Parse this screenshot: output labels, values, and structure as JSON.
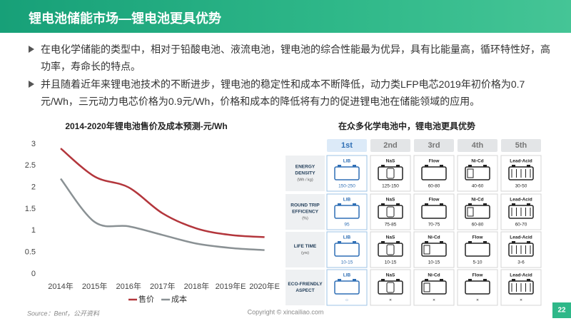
{
  "header": {
    "title": "锂电池储能市场—锂电池更具优势"
  },
  "bullets": [
    "在电化学储能的类型中，相对于铅酸电池、液流电池，锂电池的综合性能最为优异，具有比能量高，循环特性好，高功率，寿命长的特点。",
    "并且随着近年来锂电池技术的不断进步，锂电池的稳定性和成本不断降低，动力类LFP电芯2019年初价格为0.7元/Wh，三元动力电芯价格为0.9元/Wh，价格和成本的降低将有力的促进锂电池在储能领域的应用。"
  ],
  "chart_data": {
    "type": "line",
    "title": "2014-2020年锂电池售价及成本预测-元/Wh",
    "categories": [
      "2014年",
      "2015年",
      "2016年",
      "2017年",
      "2018年",
      "2019年E",
      "2020年E"
    ],
    "series": [
      {
        "name": "售价",
        "color": "#b3363c",
        "values": [
          2.9,
          2.25,
          2.0,
          1.4,
          1.05,
          0.9,
          0.85
        ]
      },
      {
        "name": "成本",
        "color": "#8a9194",
        "values": [
          2.2,
          1.2,
          1.1,
          0.9,
          0.7,
          0.6,
          0.55
        ]
      }
    ],
    "ylim": [
      0,
      3
    ],
    "yticks": [
      0,
      0.5,
      1,
      1.5,
      2,
      2.5,
      3
    ],
    "grid": false,
    "legend": "bottom"
  },
  "table": {
    "title": "在众多化学电池中，锂电池更具优势",
    "columns": [
      "1st",
      "2nd",
      "3rd",
      "4th",
      "5th"
    ],
    "rows": [
      {
        "label": [
          "ENERGY",
          "DENSITY"
        ],
        "unit": "(Wh / kg)",
        "cells": [
          {
            "name": "LIB",
            "value": "150-250"
          },
          {
            "name": "NaS",
            "value": "125-150"
          },
          {
            "name": "Flow",
            "value": "60-80"
          },
          {
            "name": "Ni-Cd",
            "value": "40-60"
          },
          {
            "name": "Lead-Acid",
            "value": "30-50"
          }
        ]
      },
      {
        "label": [
          "ROUND TRIP",
          "EFFICENCY"
        ],
        "unit": "(%)",
        "cells": [
          {
            "name": "LIB",
            "value": "95"
          },
          {
            "name": "NaS",
            "value": "75-85"
          },
          {
            "name": "Flow",
            "value": "70-75"
          },
          {
            "name": "Ni-Cd",
            "value": "60-80"
          },
          {
            "name": "Lead-Acid",
            "value": "60-70"
          }
        ]
      },
      {
        "label": [
          "LIFE TIME"
        ],
        "unit": "(yrs)",
        "cells": [
          {
            "name": "LIB",
            "value": "10-15"
          },
          {
            "name": "NaS",
            "value": "10-15"
          },
          {
            "name": "Ni-Cd",
            "value": "10-15"
          },
          {
            "name": "Flow",
            "value": "5-10"
          },
          {
            "name": "Lead-Acid",
            "value": "3-6"
          }
        ]
      },
      {
        "label": [
          "ECO-FRIENDLY",
          "ASPECT"
        ],
        "cells": [
          {
            "name": "LIB",
            "value": "○"
          },
          {
            "name": "NaS",
            "value": "×"
          },
          {
            "name": "Ni-Cd",
            "value": "×"
          },
          {
            "name": "Flow",
            "value": "×"
          },
          {
            "name": "Lead-Acid",
            "value": "×"
          }
        ]
      }
    ]
  },
  "source": "Source：Benf，公开资料",
  "copyright": "Copyright © xincailiao.com",
  "page": "22"
}
